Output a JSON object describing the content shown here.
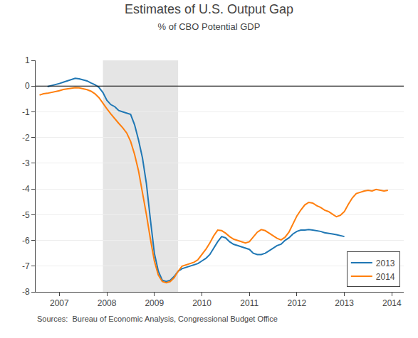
{
  "chart_data": {
    "type": "line",
    "title": "Estimates of U.S. Output Gap",
    "subtitle": "% of CBO Potential GDP",
    "source": "Sources:  Bureau of Economic Analysis, Congressional Budget Office",
    "xlim": [
      2006.5,
      2014.25
    ],
    "ylim": [
      -8,
      1
    ],
    "xticks": [
      2007,
      2008,
      2009,
      2010,
      2011,
      2012,
      2013,
      2014
    ],
    "yticks": [
      -8,
      -7,
      -6,
      -5,
      -4,
      -3,
      -2,
      -1,
      0,
      1
    ],
    "grid": "y",
    "legend": "lower right",
    "shaded_x": [
      2007.917,
      2009.5
    ],
    "hline": 0,
    "series": [
      {
        "name": "2013",
        "x": [
          2006.75,
          2006.917,
          2007.0,
          2007.083,
          2007.167,
          2007.25,
          2007.333,
          2007.417,
          2007.5,
          2007.583,
          2007.667,
          2007.75,
          2007.833,
          2007.917,
          2008.0,
          2008.083,
          2008.167,
          2008.25,
          2008.333,
          2008.417,
          2008.5,
          2008.583,
          2008.667,
          2008.75,
          2008.833,
          2008.917,
          2009.0,
          2009.083,
          2009.167,
          2009.25,
          2009.333,
          2009.417,
          2009.5,
          2009.583,
          2009.667,
          2009.75,
          2009.833,
          2009.917,
          2010.0,
          2010.083,
          2010.167,
          2010.25,
          2010.333,
          2010.417,
          2010.5,
          2010.583,
          2010.667,
          2010.75,
          2010.833,
          2010.917,
          2011.0,
          2011.083,
          2011.167,
          2011.25,
          2011.333,
          2011.417,
          2011.5,
          2011.583,
          2011.667,
          2011.75,
          2011.833,
          2011.917,
          2012.0,
          2012.083,
          2012.167,
          2012.25,
          2012.333,
          2012.417,
          2012.5,
          2012.583,
          2012.667,
          2012.75,
          2012.833,
          2012.917,
          2013.0
        ],
        "values": [
          -0.02,
          0.05,
          0.1,
          0.15,
          0.2,
          0.25,
          0.3,
          0.28,
          0.25,
          0.2,
          0.12,
          0.05,
          -0.05,
          -0.25,
          -0.55,
          -0.72,
          -0.8,
          -0.95,
          -1.0,
          -1.05,
          -1.1,
          -1.5,
          -2.1,
          -2.8,
          -3.8,
          -5.2,
          -6.5,
          -7.2,
          -7.55,
          -7.6,
          -7.55,
          -7.4,
          -7.2,
          -7.1,
          -7.05,
          -7.0,
          -6.95,
          -6.9,
          -6.8,
          -6.7,
          -6.55,
          -6.3,
          -6.05,
          -5.85,
          -5.9,
          -6.05,
          -6.15,
          -6.2,
          -6.25,
          -6.3,
          -6.35,
          -6.5,
          -6.55,
          -6.55,
          -6.5,
          -6.4,
          -6.3,
          -6.2,
          -6.15,
          -6.0,
          -5.9,
          -5.75,
          -5.65,
          -5.6,
          -5.6,
          -5.58,
          -5.6,
          -5.62,
          -5.65,
          -5.7,
          -5.72,
          -5.75,
          -5.78,
          -5.82,
          -5.85
        ]
      },
      {
        "name": "2014",
        "x": [
          2006.583,
          2006.667,
          2006.75,
          2006.833,
          2006.917,
          2007.0,
          2007.083,
          2007.167,
          2007.25,
          2007.333,
          2007.417,
          2007.5,
          2007.583,
          2007.667,
          2007.75,
          2007.833,
          2007.917,
          2008.0,
          2008.083,
          2008.167,
          2008.25,
          2008.333,
          2008.417,
          2008.5,
          2008.583,
          2008.667,
          2008.75,
          2008.833,
          2008.917,
          2009.0,
          2009.083,
          2009.167,
          2009.25,
          2009.333,
          2009.417,
          2009.5,
          2009.583,
          2009.667,
          2009.75,
          2009.833,
          2009.917,
          2010.0,
          2010.083,
          2010.167,
          2010.25,
          2010.333,
          2010.417,
          2010.5,
          2010.583,
          2010.667,
          2010.75,
          2010.833,
          2010.917,
          2011.0,
          2011.083,
          2011.167,
          2011.25,
          2011.333,
          2011.417,
          2011.5,
          2011.583,
          2011.667,
          2011.75,
          2011.833,
          2011.917,
          2012.0,
          2012.083,
          2012.167,
          2012.25,
          2012.333,
          2012.417,
          2012.5,
          2012.583,
          2012.667,
          2012.75,
          2012.833,
          2012.917,
          2013.0,
          2013.083,
          2013.167,
          2013.25,
          2013.333,
          2013.417,
          2013.5,
          2013.583,
          2013.667,
          2013.75,
          2013.833,
          2013.917
        ],
        "values": [
          -0.35,
          -0.3,
          -0.28,
          -0.25,
          -0.22,
          -0.18,
          -0.13,
          -0.1,
          -0.08,
          -0.06,
          -0.07,
          -0.1,
          -0.14,
          -0.2,
          -0.3,
          -0.45,
          -0.65,
          -0.88,
          -1.08,
          -1.28,
          -1.45,
          -1.62,
          -1.82,
          -2.15,
          -2.65,
          -3.3,
          -4.1,
          -5.0,
          -5.95,
          -6.8,
          -7.35,
          -7.6,
          -7.65,
          -7.6,
          -7.45,
          -7.2,
          -7.0,
          -6.95,
          -6.9,
          -6.85,
          -6.75,
          -6.55,
          -6.35,
          -6.1,
          -5.82,
          -5.6,
          -5.62,
          -5.72,
          -5.85,
          -5.95,
          -6.0,
          -6.05,
          -6.1,
          -6.05,
          -5.88,
          -5.68,
          -5.58,
          -5.62,
          -5.72,
          -5.82,
          -5.92,
          -5.98,
          -5.88,
          -5.68,
          -5.38,
          -5.05,
          -4.82,
          -4.62,
          -4.52,
          -4.55,
          -4.65,
          -4.72,
          -4.82,
          -4.88,
          -4.98,
          -5.08,
          -5.02,
          -4.88,
          -4.6,
          -4.35,
          -4.18,
          -4.12,
          -4.08,
          -4.05,
          -4.08,
          -4.02,
          -4.05,
          -4.08,
          -4.05
        ]
      }
    ]
  }
}
